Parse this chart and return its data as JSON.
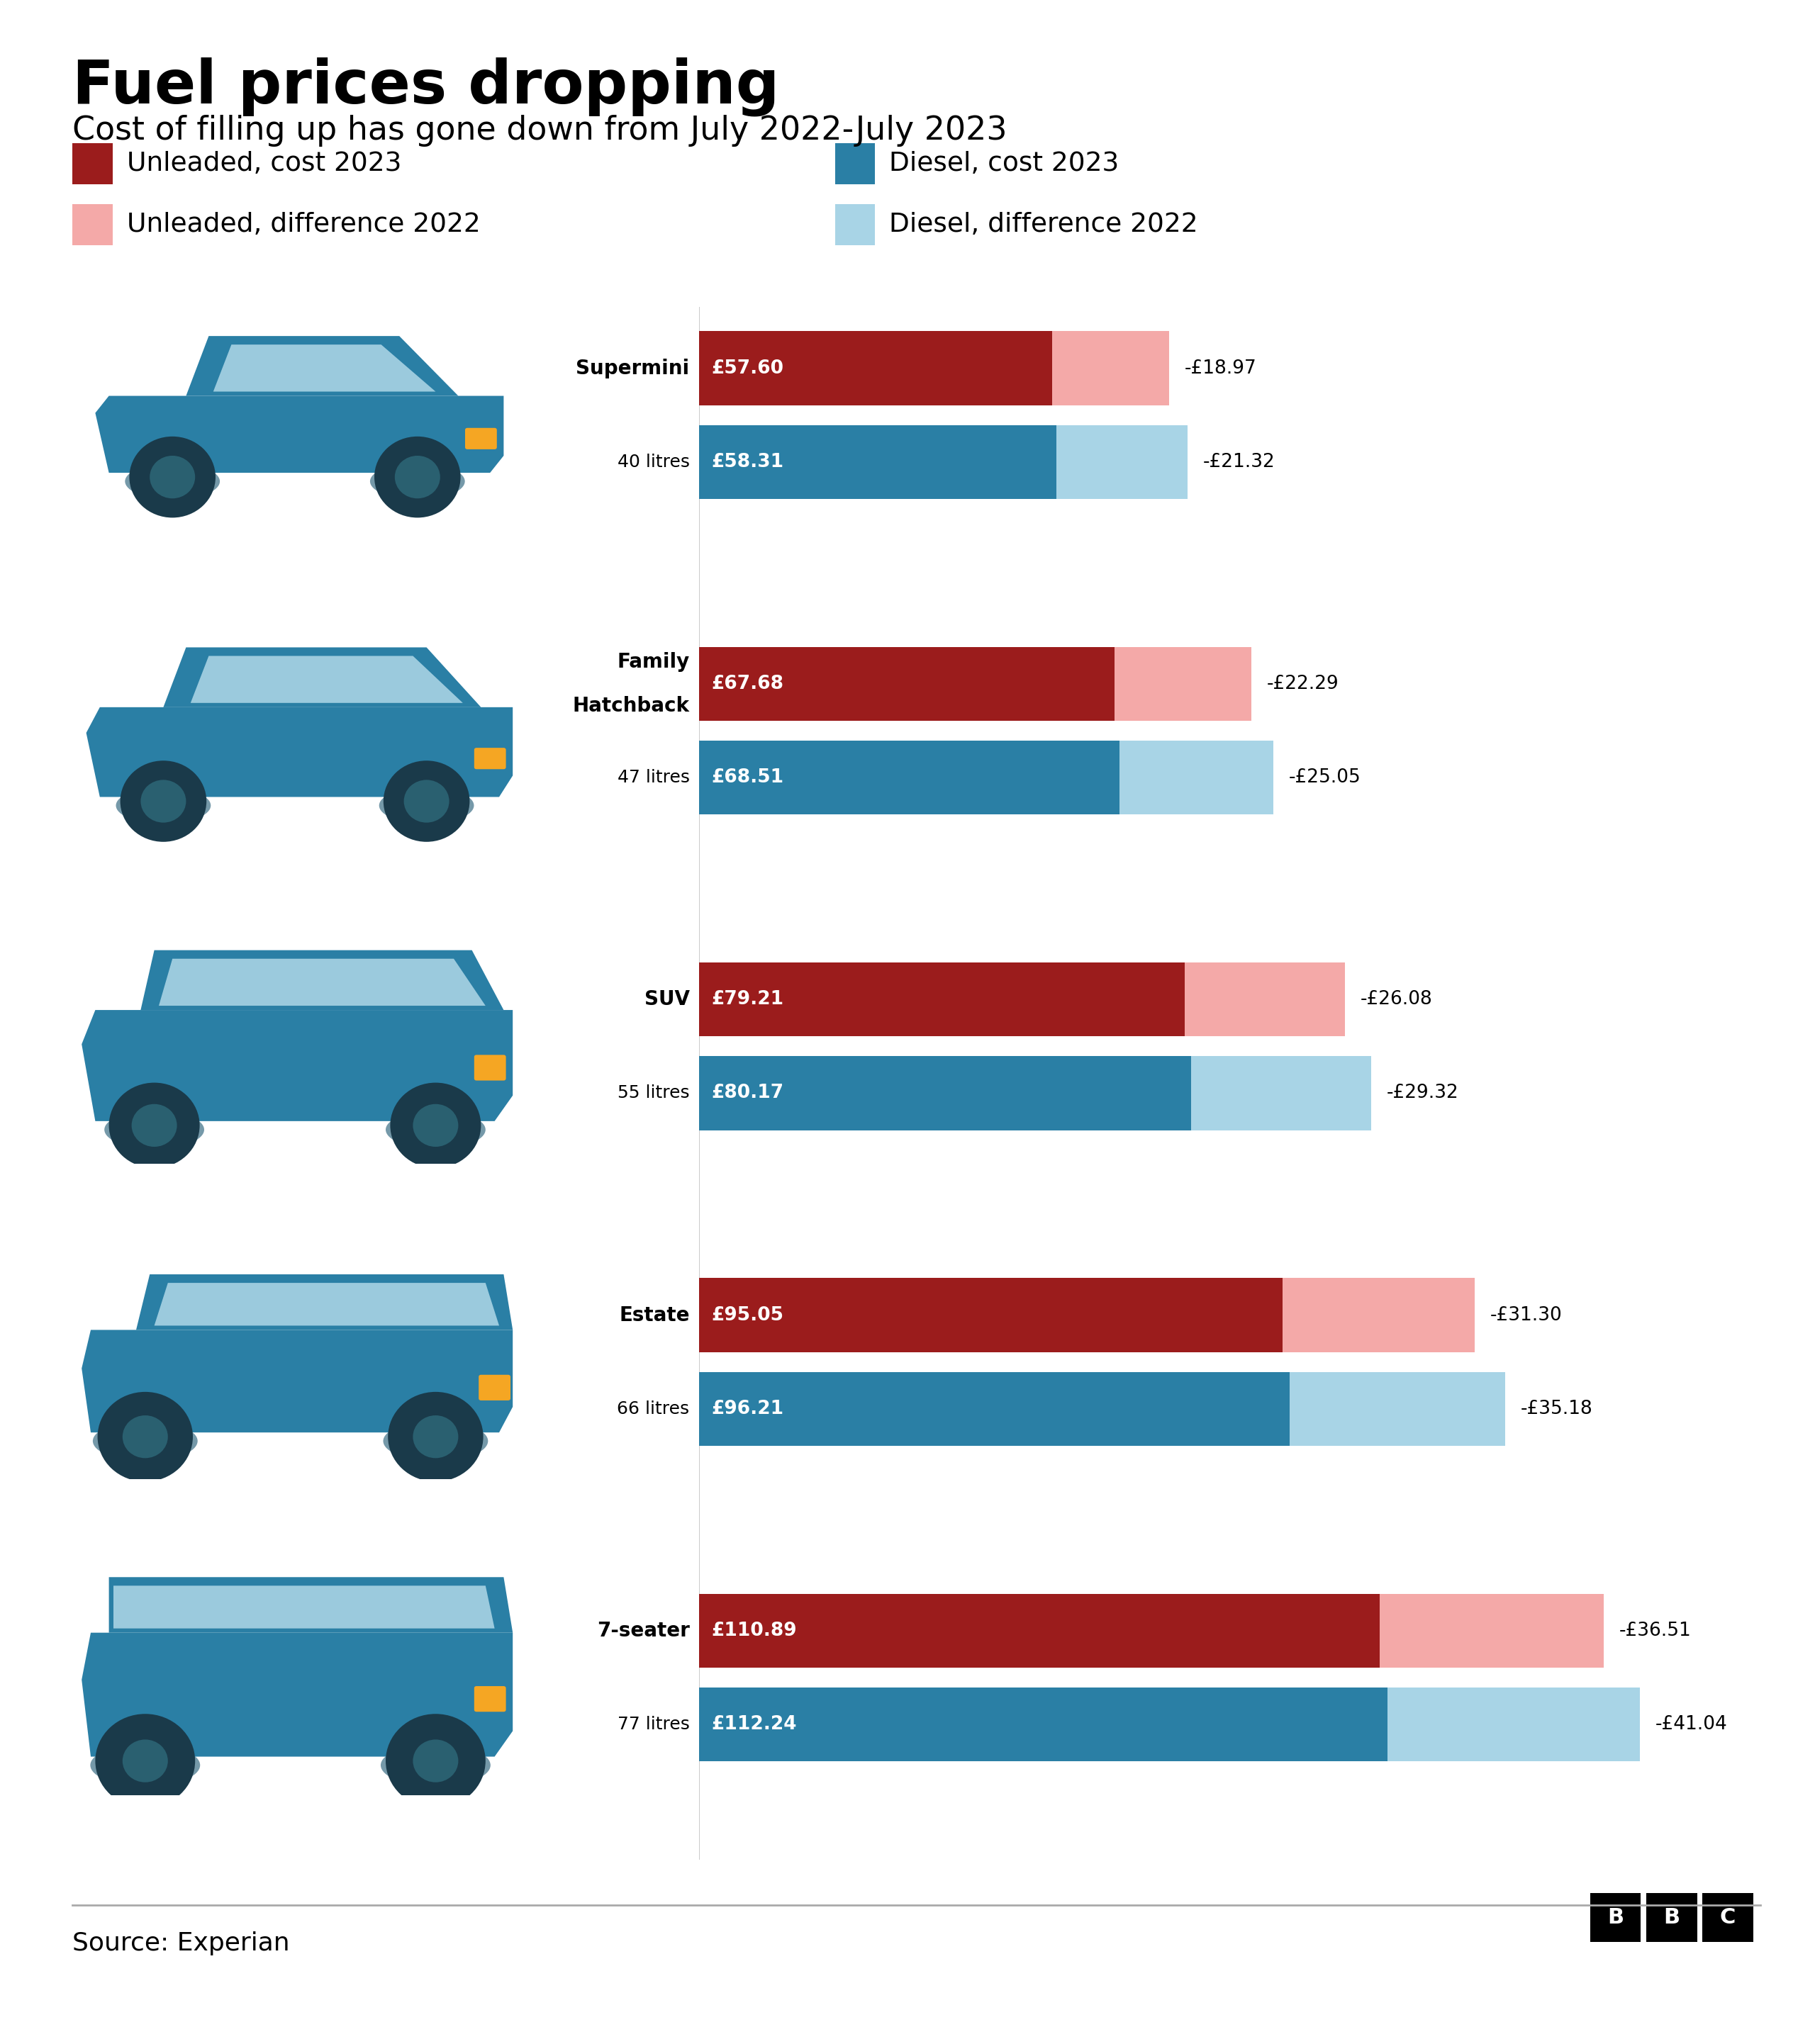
{
  "title": "Fuel prices dropping",
  "subtitle": "Cost of filling up has gone down from July 2022-July 2023",
  "source": "Source: Experian",
  "car_types": [
    {
      "name": "Supermini",
      "litres": "40 litres",
      "unleaded_cost": 57.6,
      "unleaded_diff": 18.97,
      "diesel_cost": 58.31,
      "diesel_diff": 21.32,
      "unleaded_label": "£57.60",
      "unleaded_diff_label": "-£18.97",
      "diesel_label": "£58.31",
      "diesel_diff_label": "-£21.32"
    },
    {
      "name": "Family\nHatchback",
      "litres": "47 litres",
      "unleaded_cost": 67.68,
      "unleaded_diff": 22.29,
      "diesel_cost": 68.51,
      "diesel_diff": 25.05,
      "unleaded_label": "£67.68",
      "unleaded_diff_label": "-£22.29",
      "diesel_label": "£68.51",
      "diesel_diff_label": "-£25.05"
    },
    {
      "name": "SUV",
      "litres": "55 litres",
      "unleaded_cost": 79.21,
      "unleaded_diff": 26.08,
      "diesel_cost": 80.17,
      "diesel_diff": 29.32,
      "unleaded_label": "£79.21",
      "unleaded_diff_label": "-£26.08",
      "diesel_label": "£80.17",
      "diesel_diff_label": "-£29.32"
    },
    {
      "name": "Estate",
      "litres": "66 litres",
      "unleaded_cost": 95.05,
      "unleaded_diff": 31.3,
      "diesel_cost": 96.21,
      "diesel_diff": 35.18,
      "unleaded_label": "£95.05",
      "unleaded_diff_label": "-£31.30",
      "diesel_label": "£96.21",
      "diesel_diff_label": "-£35.18"
    },
    {
      "name": "7-seater",
      "litres": "77 litres",
      "unleaded_cost": 110.89,
      "unleaded_diff": 36.51,
      "diesel_cost": 112.24,
      "diesel_diff": 41.04,
      "unleaded_label": "£110.89",
      "unleaded_diff_label": "-£36.51",
      "diesel_label": "£112.24",
      "diesel_diff_label": "-£41.04"
    }
  ],
  "colors": {
    "unleaded_cost": "#9b1c1c",
    "unleaded_diff": "#f4a9a8",
    "diesel_cost": "#2a7fa5",
    "diesel_diff": "#a8d4e6",
    "background": "#ffffff",
    "separator": "#aaaaaa",
    "car_body": "#2a7fa5",
    "car_dark": "#1a5570",
    "car_window": "#b0d8e8",
    "car_wheel_outer": "#1a3a4a",
    "car_wheel_inner": "#2a6070",
    "car_yellow": "#f5a623"
  },
  "legend_items": [
    {
      "label": "Unleaded, cost 2023",
      "color": "#9b1c1c",
      "col": 0,
      "row": 0
    },
    {
      "label": "Unleaded, difference 2022",
      "color": "#f4a9a8",
      "col": 0,
      "row": 1
    },
    {
      "label": "Diesel, cost 2023",
      "color": "#2a7fa5",
      "col": 1,
      "row": 0
    },
    {
      "label": "Diesel, difference 2022",
      "color": "#a8d4e6",
      "col": 1,
      "row": 1
    }
  ]
}
